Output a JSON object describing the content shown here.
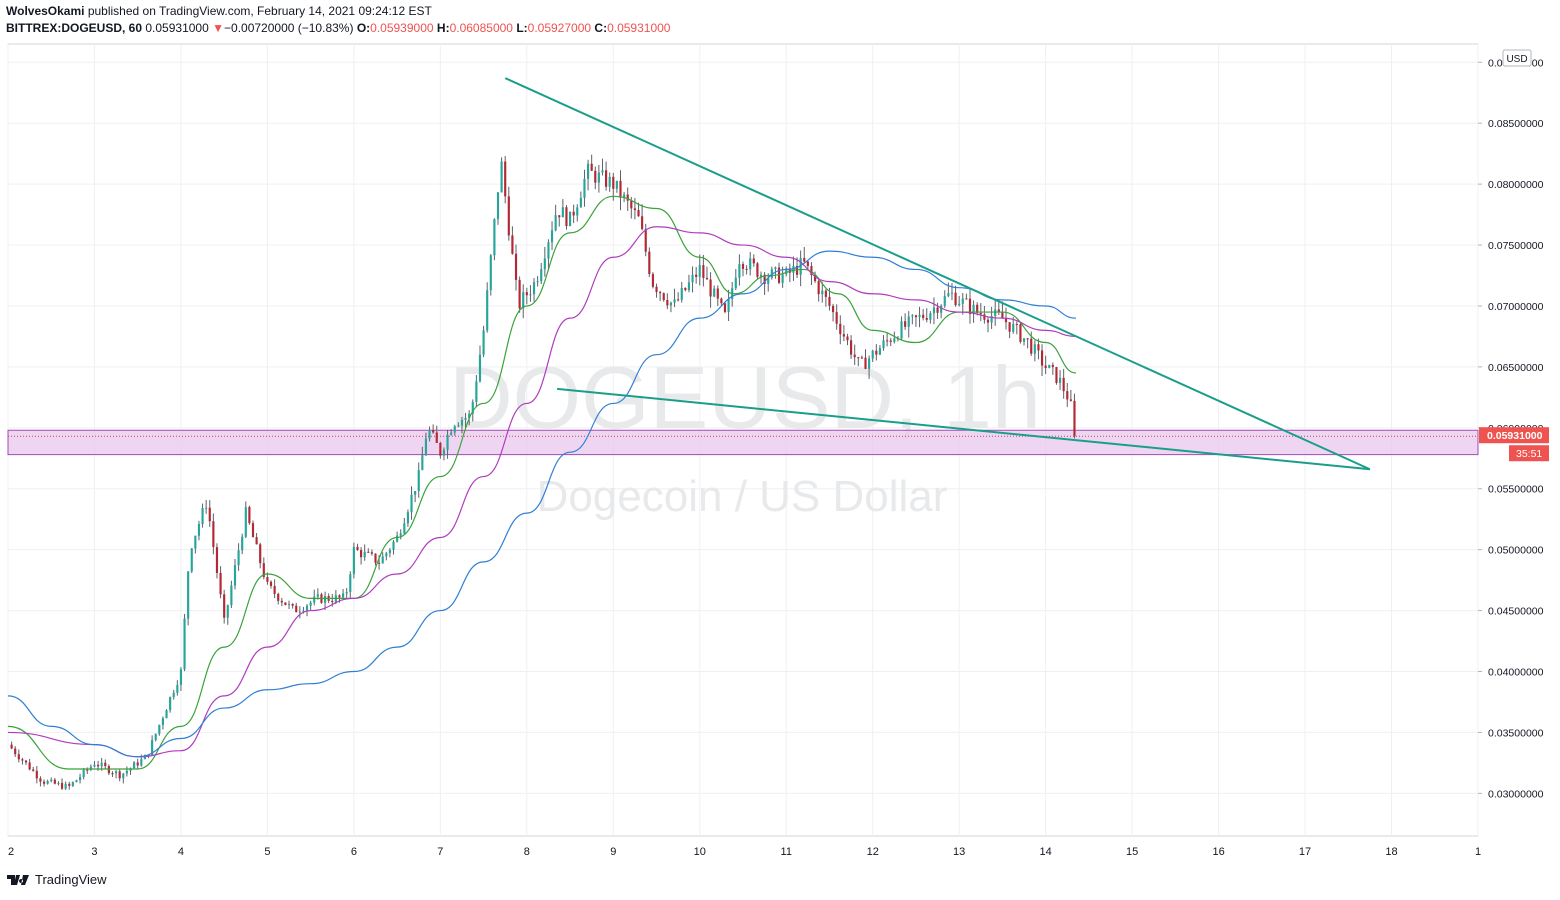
{
  "header": {
    "author": "WolvesOkami",
    "published_text": "published on TradingView.com, February 14, 2021 09:24:12 EST",
    "symbol": "BITTREX:DOGEUSD, 60",
    "price": "0.05931000",
    "change": "−0.00720000 (−10.83%)",
    "o_label": "O:",
    "o_value": "0.05939000",
    "h_label": "H:",
    "h_value": "0.06085000",
    "l_label": "L:",
    "l_value": "0.05927000",
    "c_label": "C:",
    "c_value": "0.05931000"
  },
  "watermark": {
    "title": "DOGEUSD, 1h",
    "subtitle": "Dogecoin / US Dollar"
  },
  "footer": {
    "brand": "TradingView"
  },
  "colors": {
    "up": "#26a69a",
    "down": "#ef5350",
    "candle_body_up": "#26a69a",
    "candle_body_down": "#b22833",
    "ma_fast": "#3ba23b",
    "ma_mid": "#b03cbd",
    "ma_slow": "#2f7fd6",
    "trendline": "#1a9e8a",
    "zone_fill": "#e8c8ef",
    "zone_border": "#a24bb3",
    "price_tag": "#ef5350"
  },
  "chart_data": {
    "type": "candlestick",
    "currency": "USD",
    "x_ticks": [
      "2",
      "3",
      "4",
      "5",
      "6",
      "7",
      "8",
      "9",
      "10",
      "11",
      "12",
      "13",
      "14",
      "15",
      "16",
      "17",
      "18",
      "1"
    ],
    "xlim": [
      2,
      19
    ],
    "ylim": [
      0.0265,
      0.0915
    ],
    "y_ticks": [
      "0.09000000",
      "0.08500000",
      "0.08000000",
      "0.07500000",
      "0.07000000",
      "0.06500000",
      "0.06000000",
      "0.05500000",
      "0.05000000",
      "0.04500000",
      "0.04000000",
      "0.03500000",
      "0.03000000"
    ],
    "y_tick_values": [
      0.09,
      0.085,
      0.08,
      0.075,
      0.07,
      0.065,
      0.06,
      0.055,
      0.05,
      0.045,
      0.04,
      0.035,
      0.03
    ],
    "last_price_label": "0.05931000",
    "countdown_label": "35:51",
    "last_price": 0.05931,
    "candle_keypoints": [
      [
        2.0,
        0.034
      ],
      [
        2.4,
        0.031
      ],
      [
        2.7,
        0.0305
      ],
      [
        3.0,
        0.0325
      ],
      [
        3.3,
        0.0315
      ],
      [
        3.6,
        0.033
      ],
      [
        4.0,
        0.04
      ],
      [
        4.1,
        0.05
      ],
      [
        4.3,
        0.054
      ],
      [
        4.5,
        0.044
      ],
      [
        4.75,
        0.053
      ],
      [
        5.0,
        0.047
      ],
      [
        5.3,
        0.045
      ],
      [
        5.6,
        0.046
      ],
      [
        5.9,
        0.046
      ],
      [
        6.0,
        0.05
      ],
      [
        6.3,
        0.049
      ],
      [
        6.5,
        0.051
      ],
      [
        6.75,
        0.056
      ],
      [
        6.85,
        0.06
      ],
      [
        7.0,
        0.058
      ],
      [
        7.15,
        0.0605
      ],
      [
        7.35,
        0.061
      ],
      [
        7.5,
        0.068
      ],
      [
        7.7,
        0.082
      ],
      [
        7.9,
        0.07
      ],
      [
        8.1,
        0.072
      ],
      [
        8.35,
        0.078
      ],
      [
        8.5,
        0.077
      ],
      [
        8.7,
        0.081
      ],
      [
        9.0,
        0.08
      ],
      [
        9.3,
        0.077
      ],
      [
        9.45,
        0.072
      ],
      [
        9.7,
        0.07
      ],
      [
        10.0,
        0.073
      ],
      [
        10.3,
        0.069
      ],
      [
        10.45,
        0.074
      ],
      [
        10.75,
        0.0725
      ],
      [
        11.0,
        0.0725
      ],
      [
        11.2,
        0.0735
      ],
      [
        11.5,
        0.07
      ],
      [
        11.85,
        0.065
      ],
      [
        12.0,
        0.066
      ],
      [
        12.3,
        0.068
      ],
      [
        12.65,
        0.0695
      ],
      [
        12.9,
        0.071
      ],
      [
        13.2,
        0.0695
      ],
      [
        13.5,
        0.069
      ],
      [
        13.8,
        0.067
      ],
      [
        14.0,
        0.065
      ],
      [
        14.15,
        0.064
      ],
      [
        14.28,
        0.0622
      ],
      [
        14.35,
        0.0593
      ]
    ],
    "series": [
      {
        "name": "",
        "color": "#3ba23b",
        "points": [
          [
            2,
            0.0355
          ],
          [
            2.7,
            0.032
          ],
          [
            3.5,
            0.032
          ],
          [
            4.0,
            0.0355
          ],
          [
            4.5,
            0.042
          ],
          [
            5.0,
            0.048
          ],
          [
            5.5,
            0.046
          ],
          [
            6.0,
            0.046
          ],
          [
            6.5,
            0.051
          ],
          [
            7.0,
            0.056
          ],
          [
            7.5,
            0.062
          ],
          [
            8.0,
            0.07
          ],
          [
            8.5,
            0.076
          ],
          [
            9.0,
            0.079
          ],
          [
            9.5,
            0.078
          ],
          [
            10.0,
            0.074
          ],
          [
            10.4,
            0.071
          ],
          [
            10.8,
            0.0725
          ],
          [
            11.2,
            0.073
          ],
          [
            11.6,
            0.071
          ],
          [
            12.0,
            0.068
          ],
          [
            12.5,
            0.067
          ],
          [
            13.0,
            0.0695
          ],
          [
            13.5,
            0.0695
          ],
          [
            14.0,
            0.067
          ],
          [
            14.35,
            0.0645
          ]
        ]
      },
      {
        "name": "",
        "color": "#b03cbd",
        "points": [
          [
            2,
            0.035
          ],
          [
            3.0,
            0.034
          ],
          [
            3.5,
            0.033
          ],
          [
            4.0,
            0.0335
          ],
          [
            4.5,
            0.038
          ],
          [
            5.0,
            0.042
          ],
          [
            5.5,
            0.045
          ],
          [
            6.0,
            0.046
          ],
          [
            6.5,
            0.048
          ],
          [
            7.0,
            0.051
          ],
          [
            7.5,
            0.056
          ],
          [
            8.0,
            0.062
          ],
          [
            8.5,
            0.069
          ],
          [
            9.0,
            0.074
          ],
          [
            9.5,
            0.0765
          ],
          [
            10.0,
            0.076
          ],
          [
            10.5,
            0.075
          ],
          [
            11.0,
            0.074
          ],
          [
            11.5,
            0.072
          ],
          [
            12.0,
            0.071
          ],
          [
            12.5,
            0.0705
          ],
          [
            13.0,
            0.0695
          ],
          [
            13.5,
            0.069
          ],
          [
            14.0,
            0.068
          ],
          [
            14.35,
            0.0675
          ]
        ]
      },
      {
        "name": "",
        "color": "#2f7fd6",
        "points": [
          [
            2,
            0.038
          ],
          [
            2.5,
            0.0355
          ],
          [
            3.0,
            0.034
          ],
          [
            3.5,
            0.033
          ],
          [
            4.0,
            0.0345
          ],
          [
            4.5,
            0.037
          ],
          [
            5.0,
            0.0385
          ],
          [
            5.5,
            0.039
          ],
          [
            6.0,
            0.04
          ],
          [
            6.5,
            0.042
          ],
          [
            7.0,
            0.045
          ],
          [
            7.5,
            0.049
          ],
          [
            8.0,
            0.053
          ],
          [
            8.5,
            0.058
          ],
          [
            9.0,
            0.062
          ],
          [
            9.5,
            0.066
          ],
          [
            10.0,
            0.069
          ],
          [
            10.5,
            0.071
          ],
          [
            11.0,
            0.073
          ],
          [
            11.5,
            0.0745
          ],
          [
            12.0,
            0.074
          ],
          [
            12.5,
            0.073
          ],
          [
            13.0,
            0.0715
          ],
          [
            13.5,
            0.0705
          ],
          [
            14.0,
            0.07
          ],
          [
            14.35,
            0.069
          ]
        ]
      }
    ],
    "trendlines": [
      {
        "from": [
          7.75,
          0.0887
        ],
        "to": [
          17.75,
          0.0566
        ]
      },
      {
        "from": [
          8.35,
          0.0632
        ],
        "to": [
          17.75,
          0.0566
        ]
      }
    ],
    "support_zone": [
      0.0578,
      0.0598
    ]
  }
}
